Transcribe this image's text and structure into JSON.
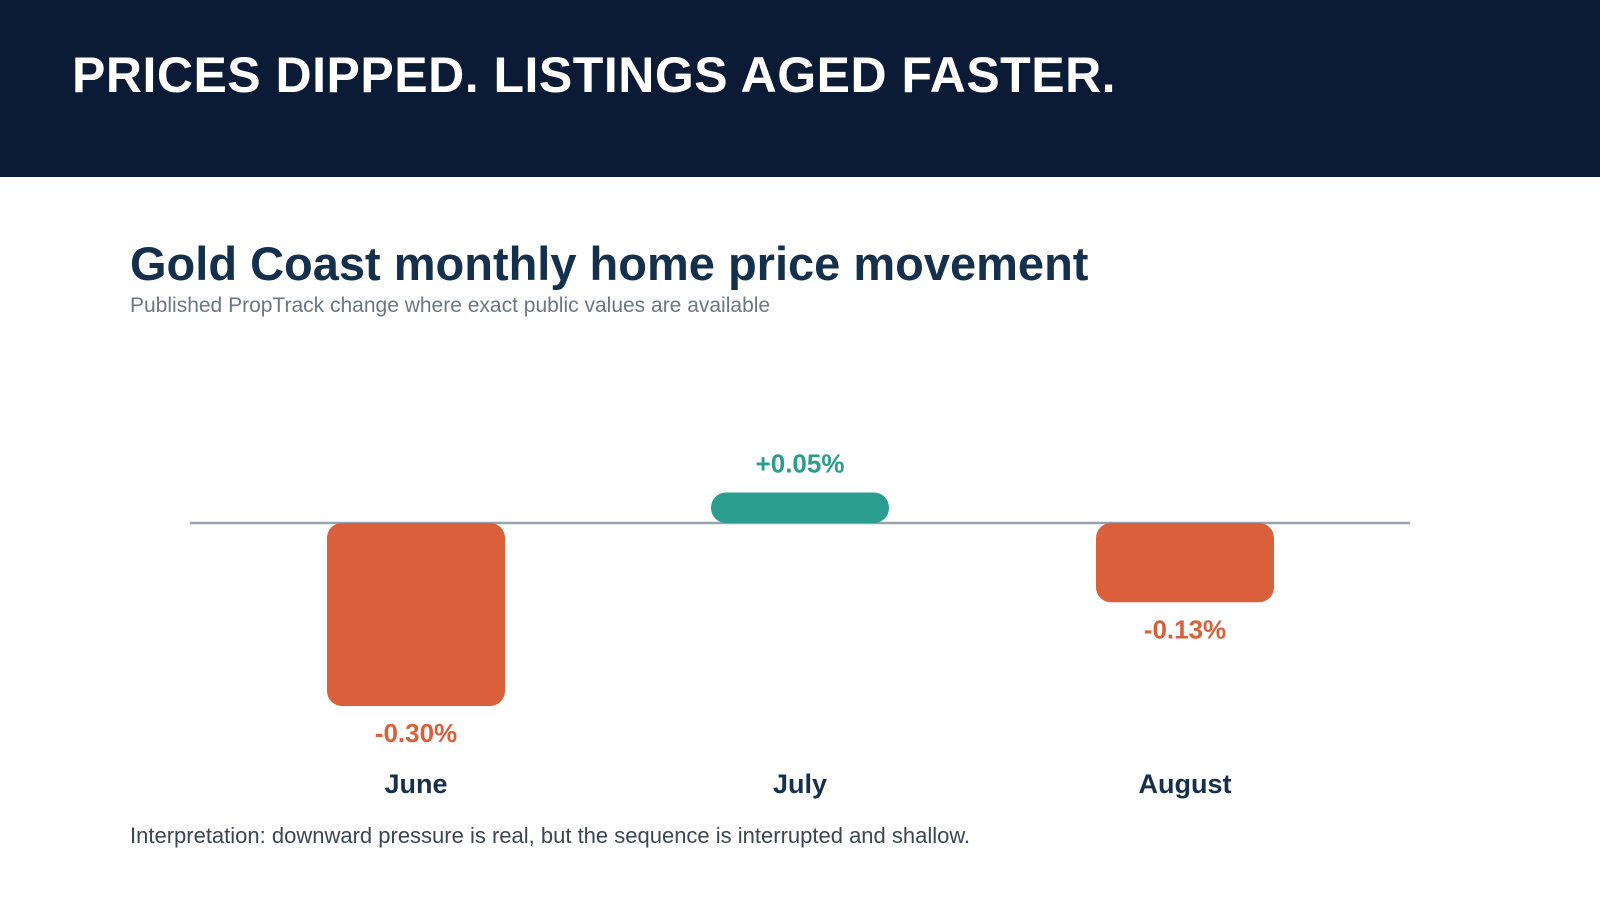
{
  "header": {
    "headline": "PRICES DIPPED. LISTINGS AGED FASTER."
  },
  "chart_data": {
    "type": "bar",
    "title": "Gold Coast monthly home price movement",
    "subtitle": "Published PropTrack change where exact public values are available",
    "categories": [
      "June",
      "July",
      "August"
    ],
    "values": [
      -0.3,
      0.05,
      -0.13
    ],
    "value_labels": [
      "-0.30%",
      "+0.05%",
      "-0.13%"
    ],
    "xlabel": "",
    "ylabel": "",
    "grid": false,
    "legend": "none",
    "colors": {
      "negative": "#da5f3b",
      "positive": "#2a9d8f",
      "baseline": "#9aa3ad"
    }
  },
  "footer": {
    "interpretation": "Interpretation: downward pressure is real, but the sequence is interrupted and shallow."
  }
}
